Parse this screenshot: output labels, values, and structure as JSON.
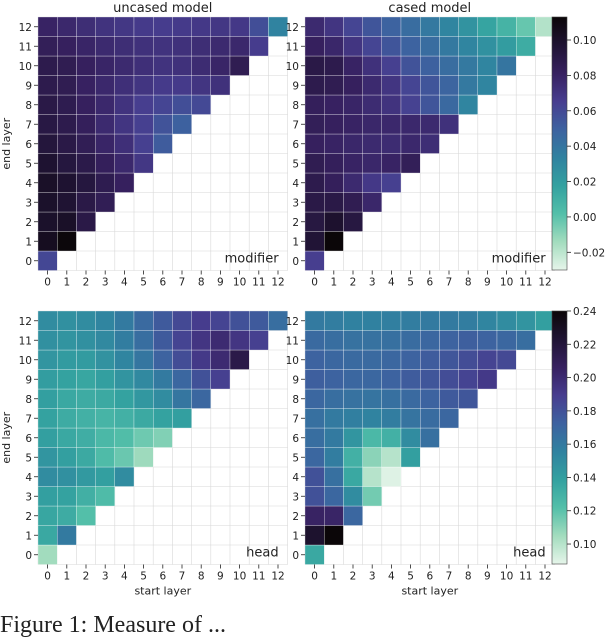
{
  "figure": {
    "caption_fragment": "Figure 1: Measure of ..."
  },
  "chart_data": [
    {
      "type": "heatmap",
      "title": "uncased model",
      "annotation": "modifier",
      "xlabel": "",
      "ylabel": "end layer",
      "x_ticks": [
        "0",
        "1",
        "2",
        "3",
        "4",
        "5",
        "6",
        "7",
        "8",
        "9",
        "10",
        "11",
        "12"
      ],
      "y_ticks": [
        "0",
        "1",
        "2",
        "3",
        "4",
        "5",
        "6",
        "7",
        "8",
        "9",
        "10",
        "11",
        "12"
      ],
      "colorbar_group": "modifier",
      "rows": [
        [
          0.061
        ],
        [
          0.104,
          0.112
        ],
        [
          0.1,
          0.101,
          0.09
        ],
        [
          0.1,
          0.097,
          0.09,
          0.085
        ],
        [
          0.101,
          0.098,
          0.093,
          0.087,
          0.082
        ],
        [
          0.098,
          0.093,
          0.089,
          0.083,
          0.077,
          0.069
        ],
        [
          0.094,
          0.09,
          0.085,
          0.079,
          0.073,
          0.064,
          0.052
        ],
        [
          0.091,
          0.088,
          0.083,
          0.076,
          0.07,
          0.064,
          0.056,
          0.05
        ],
        [
          0.09,
          0.087,
          0.082,
          0.077,
          0.071,
          0.065,
          0.062,
          0.058,
          0.06
        ],
        [
          0.088,
          0.086,
          0.081,
          0.077,
          0.073,
          0.07,
          0.067,
          0.067,
          0.07,
          0.072
        ],
        [
          0.088,
          0.086,
          0.082,
          0.079,
          0.076,
          0.073,
          0.071,
          0.072,
          0.075,
          0.079,
          0.086
        ],
        [
          0.084,
          0.082,
          0.079,
          0.076,
          0.074,
          0.072,
          0.071,
          0.072,
          0.074,
          0.076,
          0.077,
          0.066
        ],
        [
          0.08,
          0.077,
          0.074,
          0.071,
          0.069,
          0.067,
          0.066,
          0.067,
          0.068,
          0.069,
          0.068,
          0.058,
          0.033
        ]
      ]
    },
    {
      "type": "heatmap",
      "title": "cased model",
      "annotation": "modifier",
      "xlabel": "",
      "ylabel": "",
      "x_ticks": [
        "0",
        "1",
        "2",
        "3",
        "4",
        "5",
        "6",
        "7",
        "8",
        "9",
        "10",
        "11",
        "12"
      ],
      "y_ticks": [
        "0",
        "1",
        "2",
        "3",
        "4",
        "5",
        "6",
        "7",
        "8",
        "9",
        "10",
        "11",
        "12"
      ],
      "colorbar_group": "modifier",
      "rows": [
        [
          0.065
        ],
        [
          0.096,
          0.113
        ],
        [
          0.092,
          0.099,
          0.092
        ],
        [
          0.09,
          0.09,
          0.086,
          0.078
        ],
        [
          0.088,
          0.083,
          0.076,
          0.068,
          0.064
        ],
        [
          0.086,
          0.083,
          0.08,
          0.078,
          0.08,
          0.084
        ],
        [
          0.082,
          0.08,
          0.078,
          0.076,
          0.075,
          0.077,
          0.074
        ],
        [
          0.084,
          0.082,
          0.08,
          0.078,
          0.077,
          0.077,
          0.076,
          0.072
        ],
        [
          0.083,
          0.081,
          0.079,
          0.075,
          0.071,
          0.063,
          0.055,
          0.046,
          0.032
        ],
        [
          0.088,
          0.086,
          0.082,
          0.076,
          0.07,
          0.062,
          0.055,
          0.048,
          0.038,
          0.032
        ],
        [
          0.09,
          0.088,
          0.08,
          0.072,
          0.064,
          0.056,
          0.05,
          0.044,
          0.038,
          0.032,
          0.04
        ],
        [
          0.082,
          0.078,
          0.07,
          0.062,
          0.055,
          0.049,
          0.044,
          0.038,
          0.032,
          0.026,
          0.02,
          0.012
        ],
        [
          0.076,
          0.07,
          0.062,
          0.055,
          0.049,
          0.044,
          0.038,
          0.032,
          0.025,
          0.016,
          0.008,
          -0.002,
          -0.018
        ]
      ]
    },
    {
      "type": "heatmap",
      "title": "",
      "annotation": "head",
      "xlabel": "start layer",
      "ylabel": "end layer",
      "x_ticks": [
        "0",
        "1",
        "2",
        "3",
        "4",
        "5",
        "6",
        "7",
        "8",
        "9",
        "10",
        "11",
        "12"
      ],
      "y_ticks": [
        "0",
        "1",
        "2",
        "3",
        "4",
        "5",
        "6",
        "7",
        "8",
        "9",
        "10",
        "11",
        "12"
      ],
      "colorbar_group": "head",
      "rows": [
        [
          0.105
        ],
        [
          0.135,
          0.16
        ],
        [
          0.136,
          0.133,
          0.122
        ],
        [
          0.14,
          0.138,
          0.131,
          0.124
        ],
        [
          0.15,
          0.148,
          0.143,
          0.14,
          0.15
        ],
        [
          0.145,
          0.14,
          0.134,
          0.124,
          0.117,
          0.106
        ],
        [
          0.14,
          0.135,
          0.132,
          0.126,
          0.123,
          0.116,
          0.112
        ],
        [
          0.138,
          0.133,
          0.13,
          0.128,
          0.13,
          0.134,
          0.138,
          0.14
        ],
        [
          0.14,
          0.135,
          0.133,
          0.134,
          0.138,
          0.144,
          0.15,
          0.162,
          0.17
        ],
        [
          0.141,
          0.138,
          0.136,
          0.14,
          0.146,
          0.152,
          0.16,
          0.17,
          0.18,
          0.188
        ],
        [
          0.145,
          0.142,
          0.142,
          0.147,
          0.154,
          0.162,
          0.172,
          0.182,
          0.192,
          0.2,
          0.215
        ],
        [
          0.148,
          0.146,
          0.148,
          0.152,
          0.158,
          0.166,
          0.176,
          0.186,
          0.194,
          0.2,
          0.194,
          0.188
        ],
        [
          0.15,
          0.148,
          0.15,
          0.154,
          0.16,
          0.168,
          0.176,
          0.184,
          0.19,
          0.186,
          0.18,
          0.176,
          0.166
        ]
      ]
    },
    {
      "type": "heatmap",
      "title": "",
      "annotation": "head",
      "xlabel": "start layer",
      "ylabel": "",
      "x_ticks": [
        "0",
        "1",
        "2",
        "3",
        "4",
        "5",
        "6",
        "7",
        "8",
        "9",
        "10",
        "11",
        "12"
      ],
      "y_ticks": [
        "0",
        "1",
        "2",
        "3",
        "4",
        "5",
        "6",
        "7",
        "8",
        "9",
        "10",
        "11",
        "12"
      ],
      "colorbar_group": "head",
      "rows": [
        [
          0.135
        ],
        [
          0.225,
          0.24
        ],
        [
          0.205,
          0.204,
          0.17
        ],
        [
          0.18,
          0.17,
          0.15,
          0.115
        ],
        [
          0.18,
          0.165,
          0.135,
          0.1,
          0.09
        ],
        [
          0.17,
          0.158,
          0.13,
          0.11,
          0.1,
          0.14
        ],
        [
          0.166,
          0.16,
          0.145,
          0.126,
          0.13,
          0.15,
          0.165
        ],
        [
          0.165,
          0.16,
          0.157,
          0.155,
          0.158,
          0.163,
          0.167,
          0.17
        ],
        [
          0.17,
          0.166,
          0.164,
          0.163,
          0.165,
          0.168,
          0.172,
          0.176,
          0.178
        ],
        [
          0.174,
          0.172,
          0.17,
          0.17,
          0.172,
          0.175,
          0.178,
          0.182,
          0.186,
          0.192
        ],
        [
          0.172,
          0.17,
          0.168,
          0.168,
          0.17,
          0.172,
          0.175,
          0.178,
          0.182,
          0.186,
          0.184
        ],
        [
          0.168,
          0.166,
          0.164,
          0.164,
          0.165,
          0.167,
          0.17,
          0.172,
          0.174,
          0.172,
          0.17,
          0.166
        ],
        [
          0.16,
          0.158,
          0.156,
          0.156,
          0.157,
          0.158,
          0.16,
          0.16,
          0.158,
          0.154,
          0.15,
          0.146,
          0.14
        ]
      ]
    }
  ],
  "colorbars": {
    "modifier": {
      "vmin": -0.03,
      "vmax": 0.113,
      "ticks": [
        -0.02,
        0.0,
        0.02,
        0.04,
        0.06,
        0.08,
        0.1
      ],
      "tick_labels": [
        "−0.02",
        "0.00",
        "0.02",
        "0.04",
        "0.06",
        "0.08",
        "0.10"
      ]
    },
    "head": {
      "vmin": 0.088,
      "vmax": 0.24,
      "ticks": [
        0.1,
        0.12,
        0.14,
        0.16,
        0.18,
        0.2,
        0.22,
        0.24
      ],
      "tick_labels": [
        "0.10",
        "0.12",
        "0.14",
        "0.16",
        "0.18",
        "0.20",
        "0.22",
        "0.24"
      ]
    }
  },
  "colormap": [
    "#e6f5ea",
    "#a3dcbe",
    "#53bfa9",
    "#33a1a0",
    "#3082a0",
    "#3d62a0",
    "#473d8f",
    "#372160",
    "#1f1333",
    "#0b0608"
  ]
}
